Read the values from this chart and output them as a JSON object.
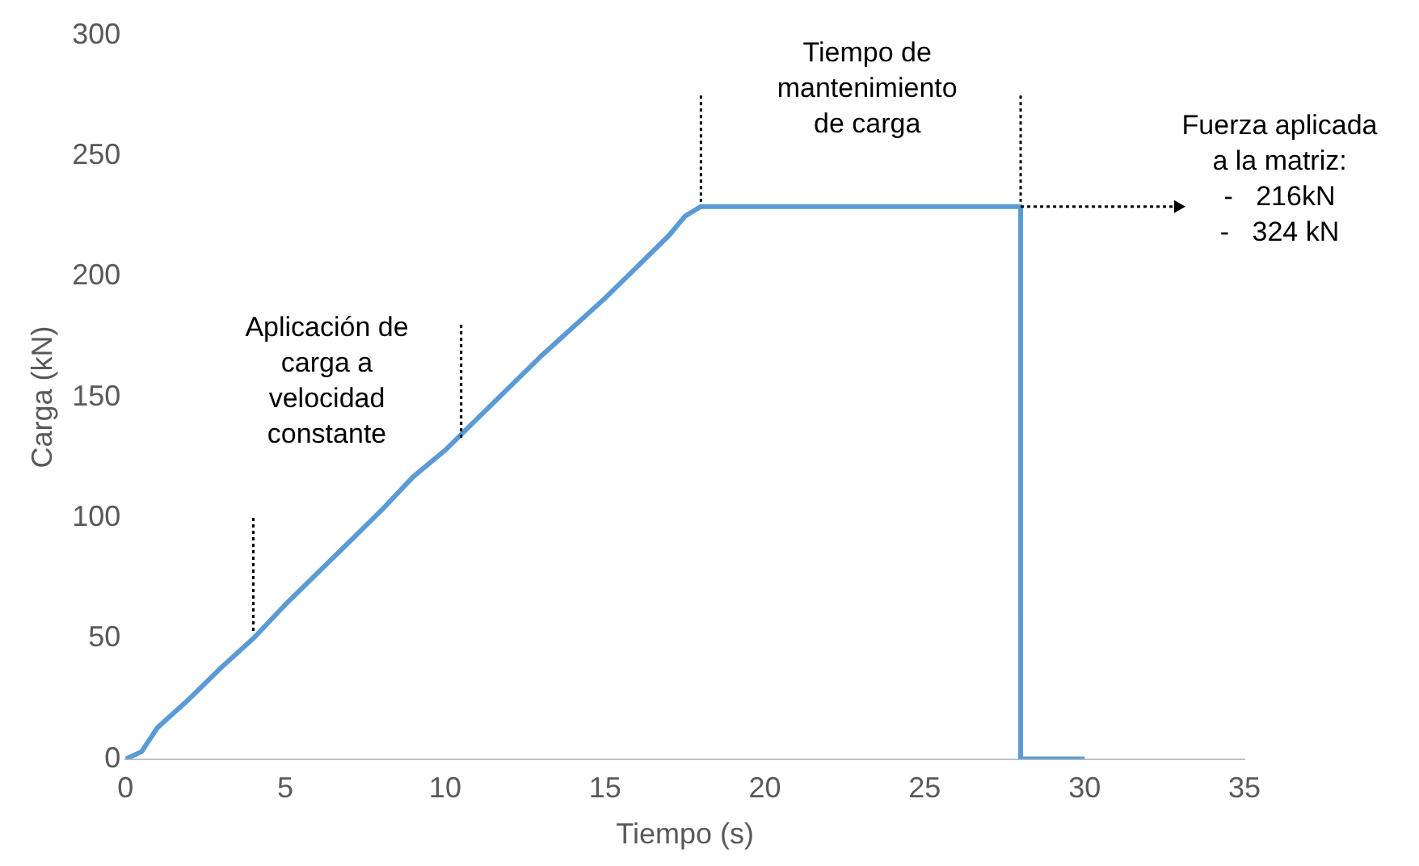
{
  "chart_data": {
    "type": "line",
    "xlabel": "Tiempo (s)",
    "ylabel": "Carga (kN)",
    "x": [
      0,
      0.5,
      1,
      2,
      3,
      4,
      5,
      6,
      7,
      8,
      9,
      10,
      11,
      12,
      13,
      14,
      15,
      16,
      17,
      17.5,
      18,
      28,
      28,
      30
    ],
    "values": [
      0,
      3,
      13,
      25,
      38,
      50,
      64,
      77,
      90,
      103,
      117,
      128,
      141,
      154,
      167,
      179,
      191,
      204,
      217,
      225,
      229,
      229,
      0,
      0
    ],
    "color": "#5b9bd5",
    "xlim": [
      0,
      35
    ],
    "xticks": [
      0,
      5,
      10,
      15,
      20,
      25,
      30,
      35
    ],
    "ylim": [
      0,
      300
    ],
    "yticks": [
      0,
      50,
      100,
      150,
      200,
      250,
      300
    ],
    "grid": false,
    "legend": false,
    "marker": "none",
    "line_style": "solid",
    "annotations": [
      "Aplicación de\ncarga a\nvelocidad\nconstante",
      "Tiempo de\nmantenimiento\nde carga",
      "Fuerza aplicada\na la matriz:\n-   216kN\n-   324 kN"
    ]
  }
}
